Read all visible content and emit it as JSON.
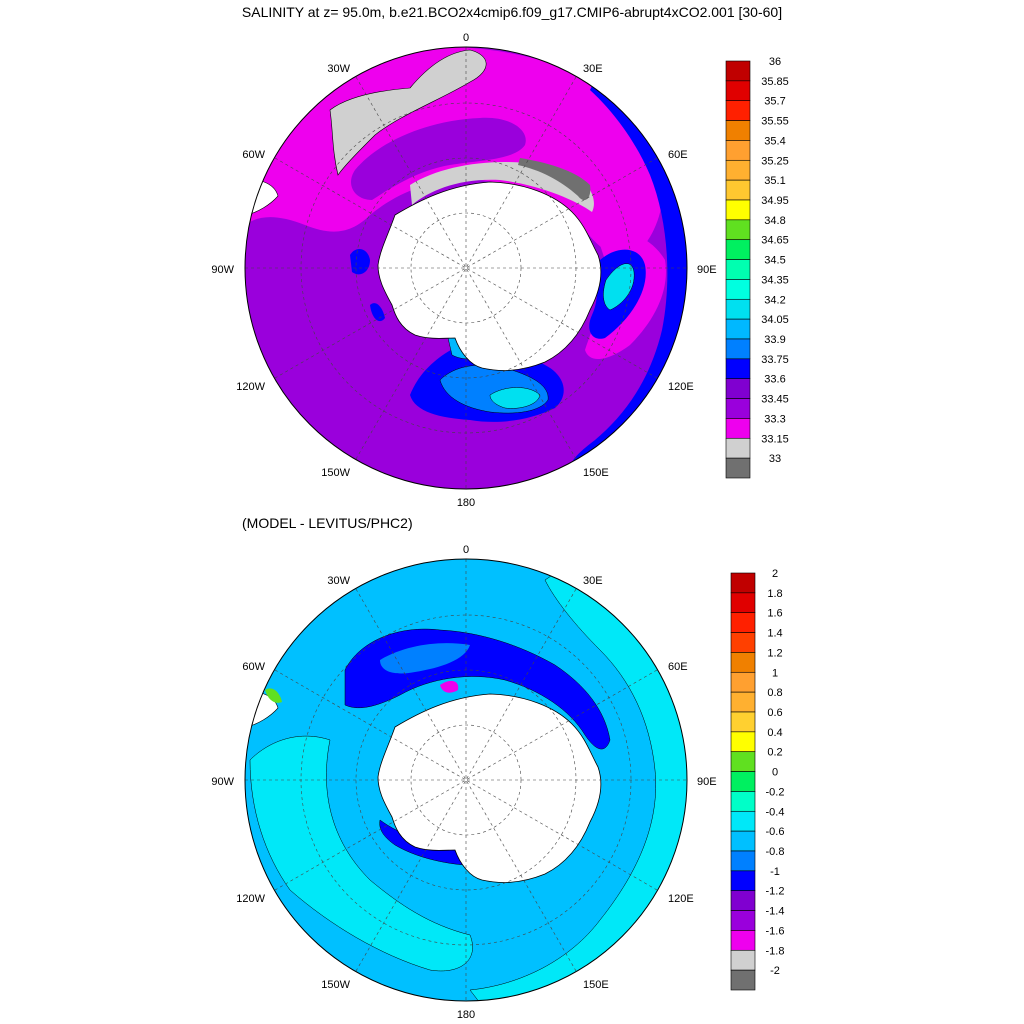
{
  "title": "SALINITY at z=  95.0m, b.e21.BCO2x4cmip6.f09_g17.CMIP6-abrupt4xCO2.001 [30-60]",
  "subtitle": "(MODEL - LEVITUS/PHC2)",
  "maps": [
    {
      "name": "salinity",
      "lon_labels": [
        "0",
        "30E",
        "60E",
        "90E",
        "120E",
        "150E",
        "180",
        "150W",
        "120W",
        "90W",
        "60W",
        "30W"
      ],
      "colorbar": {
        "levels": [
          "36",
          "35.85",
          "35.7",
          "35.55",
          "35.4",
          "35.25",
          "35.1",
          "34.95",
          "34.8",
          "34.65",
          "34.5",
          "34.35",
          "34.2",
          "34.05",
          "33.9",
          "33.75",
          "33.6",
          "33.45",
          "33.3",
          "33.15",
          "33"
        ],
        "colors": [
          "#c00000",
          "#e00000",
          "#ff2000",
          "#f08000",
          "#ffa030",
          "#ffb030",
          "#ffc830",
          "#ffff00",
          "#60e020",
          "#00f060",
          "#00ffb0",
          "#00ffe0",
          "#00e0f0",
          "#00b8ff",
          "#0080ff",
          "#0000ff",
          "#8000d0",
          "#9a00dc",
          "#ee00ee",
          "#d0d0d0",
          "#707070"
        ]
      }
    },
    {
      "name": "difference",
      "lon_labels": [
        "0",
        "30E",
        "60E",
        "90E",
        "120E",
        "150E",
        "180",
        "150W",
        "120W",
        "90W",
        "60W",
        "30W"
      ],
      "colorbar": {
        "levels": [
          "2",
          "1.8",
          "1.6",
          "1.4",
          "1.2",
          "1",
          "0.8",
          "0.6",
          "0.4",
          "0.2",
          "0",
          "-0.2",
          "-0.4",
          "-0.6",
          "-0.8",
          "-1",
          "-1.2",
          "-1.4",
          "-1.6",
          "-1.8",
          "-2"
        ],
        "colors": [
          "#c00000",
          "#e00000",
          "#ff2000",
          "#ff4000",
          "#f08000",
          "#ffa030",
          "#ffb030",
          "#ffd030",
          "#ffff00",
          "#60e020",
          "#00f060",
          "#00ffc8",
          "#00e8f8",
          "#00c0ff",
          "#0080ff",
          "#0000ff",
          "#8000d0",
          "#9a00dc",
          "#ee00ee",
          "#d0d0d0",
          "#707070"
        ]
      }
    }
  ]
}
